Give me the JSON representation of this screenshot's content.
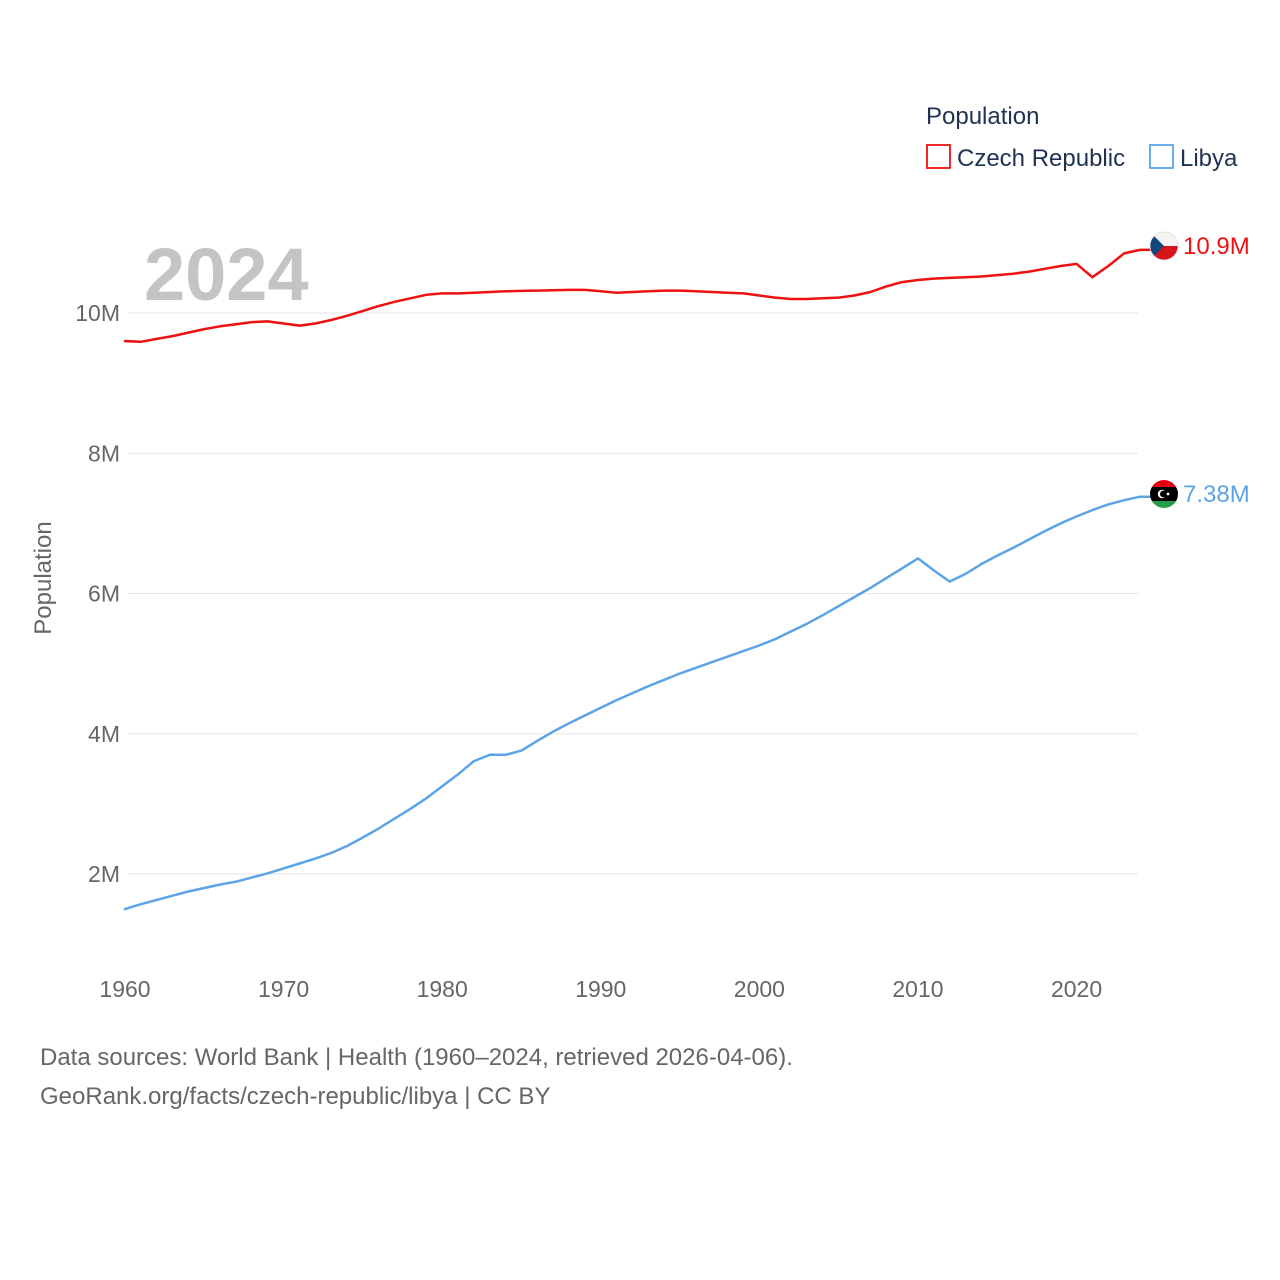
{
  "chart_data": {
    "type": "line",
    "title": "Population",
    "ylabel": "Population",
    "xlabel": "",
    "year_label": "2024",
    "xlim": [
      1960,
      2024
    ],
    "ylim": [
      1000000,
      11700000
    ],
    "x_ticks": [
      1960,
      1970,
      1980,
      1990,
      2000,
      2010,
      2020
    ],
    "x_tick_labels": [
      "1960",
      "1970",
      "1980",
      "1990",
      "2000",
      "2010",
      "2020"
    ],
    "y_ticks": [
      2000000,
      4000000,
      6000000,
      8000000,
      10000000
    ],
    "y_tick_labels": [
      "2M",
      "4M",
      "6M",
      "8M",
      "10M"
    ],
    "legend_position": "top-right",
    "x": [
      1960,
      1961,
      1962,
      1963,
      1964,
      1965,
      1966,
      1967,
      1968,
      1969,
      1970,
      1971,
      1972,
      1973,
      1974,
      1975,
      1976,
      1977,
      1978,
      1979,
      1980,
      1981,
      1982,
      1983,
      1984,
      1985,
      1986,
      1987,
      1988,
      1989,
      1990,
      1991,
      1992,
      1993,
      1994,
      1995,
      1996,
      1997,
      1998,
      1999,
      2000,
      2001,
      2002,
      2003,
      2004,
      2005,
      2006,
      2007,
      2008,
      2009,
      2010,
      2011,
      2012,
      2013,
      2014,
      2015,
      2016,
      2017,
      2018,
      2019,
      2020,
      2021,
      2022,
      2023,
      2024
    ],
    "series": [
      {
        "name": "Czech Republic",
        "color": "#ee1111",
        "end_label": "10.9M",
        "flag": "czech-flag",
        "values": [
          9600000,
          9590000,
          9630000,
          9670000,
          9720000,
          9770000,
          9810000,
          9840000,
          9870000,
          9880000,
          9850000,
          9820000,
          9850000,
          9900000,
          9960000,
          10030000,
          10100000,
          10160000,
          10210000,
          10260000,
          10280000,
          10280000,
          10290000,
          10300000,
          10310000,
          10315000,
          10320000,
          10325000,
          10330000,
          10330000,
          10310000,
          10290000,
          10300000,
          10310000,
          10320000,
          10320000,
          10310000,
          10300000,
          10290000,
          10280000,
          10250000,
          10220000,
          10200000,
          10200000,
          10210000,
          10220000,
          10250000,
          10300000,
          10380000,
          10440000,
          10470000,
          10490000,
          10500000,
          10510000,
          10520000,
          10540000,
          10560000,
          10590000,
          10630000,
          10670000,
          10700000,
          10510000,
          10670000,
          10850000,
          10900000
        ]
      },
      {
        "name": "Libya",
        "color": "#5ba4e6",
        "end_label": "7.38M",
        "flag": "libya-flag",
        "values": [
          1500000,
          1570000,
          1630000,
          1690000,
          1750000,
          1800000,
          1850000,
          1890000,
          1950000,
          2010000,
          2080000,
          2150000,
          2220000,
          2300000,
          2400000,
          2520000,
          2650000,
          2790000,
          2930000,
          3080000,
          3250000,
          3420000,
          3610000,
          3700000,
          3700000,
          3760000,
          3900000,
          4030000,
          4150000,
          4260000,
          4370000,
          4480000,
          4580000,
          4680000,
          4770000,
          4860000,
          4940000,
          5020000,
          5100000,
          5180000,
          5260000,
          5350000,
          5460000,
          5570000,
          5690000,
          5820000,
          5950000,
          6080000,
          6220000,
          6360000,
          6500000,
          6330000,
          6170000,
          6280000,
          6420000,
          6540000,
          6650000,
          6770000,
          6890000,
          7000000,
          7100000,
          7190000,
          7270000,
          7330000,
          7380000
        ]
      }
    ]
  },
  "source": {
    "line1": "Data sources: World Bank | Health (1960–2024, retrieved 2026-04-06).",
    "line2": "GeoRank.org/facts/czech-republic/libya | CC BY"
  }
}
